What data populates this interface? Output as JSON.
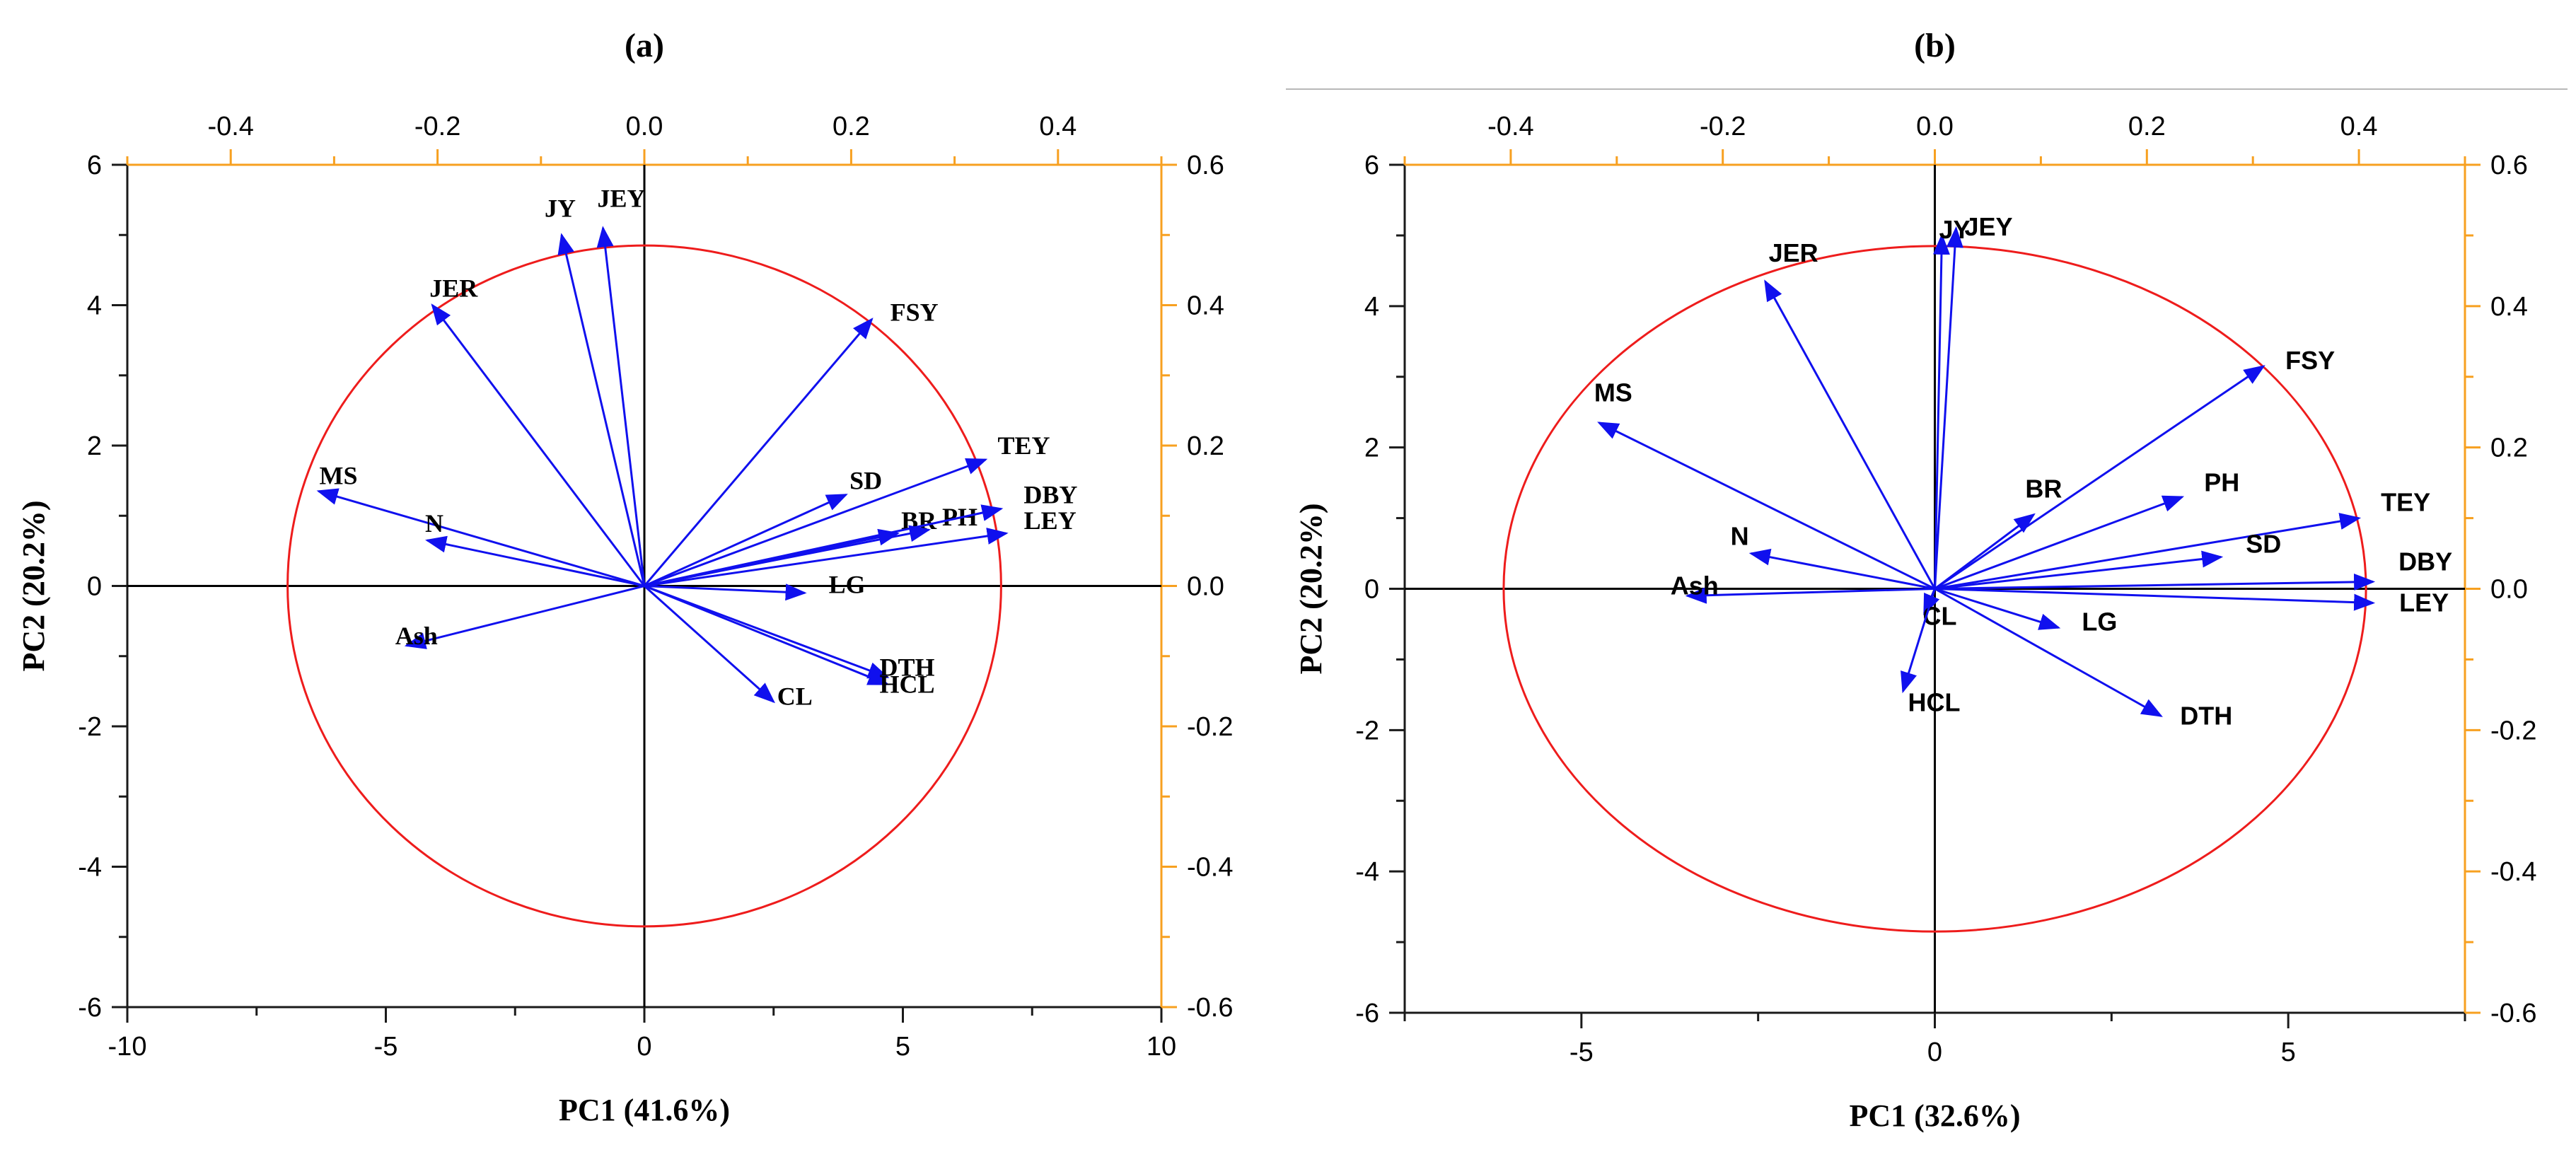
{
  "colors": {
    "vector": "#1010ee",
    "circle": "#ee1c1c",
    "secondary_axis": "#f7a020",
    "primary_axis": "#1a1a1a",
    "separator": "#b8b8b8"
  },
  "chart_data": [
    {
      "type": "scatter",
      "subtype": "pca-biplot",
      "panel_label": "(a)",
      "xlabel": "PC1 (41.6%)",
      "ylabel": "PC2 (20.2%)",
      "xlim": [
        -10,
        10
      ],
      "ylim": [
        -6,
        6
      ],
      "x_ticks": [
        -10,
        -5,
        0,
        5,
        10
      ],
      "y_ticks": [
        -6,
        -4,
        -2,
        0,
        2,
        4,
        6
      ],
      "x_tick_labels": [
        "-10",
        "-5",
        "0",
        "5",
        "10"
      ],
      "y_tick_labels": [
        "-6",
        "-4",
        "-2",
        "0",
        "2",
        "4",
        "6"
      ],
      "top_axis": {
        "lim": [
          -0.5,
          0.5
        ],
        "ticks": [
          -0.4,
          -0.2,
          0.0,
          0.2,
          0.4
        ],
        "tick_labels": [
          "-0.4",
          "-0.2",
          "0.0",
          "0.2",
          "0.4"
        ]
      },
      "right_axis": {
        "lim": [
          -0.6,
          0.6
        ],
        "ticks": [
          -0.6,
          -0.4,
          -0.2,
          0.0,
          0.2,
          0.4,
          0.6
        ],
        "tick_labels": [
          "-0.6",
          "-0.4",
          "-0.2",
          "0.0",
          "0.2",
          "0.4",
          "0.6"
        ]
      },
      "circle": {
        "rx": 6.9,
        "ry": 4.85
      },
      "vectors": [
        {
          "label": "JY",
          "x": -1.6,
          "y": 5.0
        },
        {
          "label": "JEY",
          "x": -0.8,
          "y": 5.1
        },
        {
          "label": "JER",
          "x": -4.1,
          "y": 4.0
        },
        {
          "label": "FSY",
          "x": 4.4,
          "y": 3.8
        },
        {
          "label": "MS",
          "x": -6.3,
          "y": 1.35
        },
        {
          "label": "N",
          "x": -4.2,
          "y": 0.65
        },
        {
          "label": "Ash",
          "x": -4.6,
          "y": -0.85
        },
        {
          "label": "SD",
          "x": 3.9,
          "y": 1.3
        },
        {
          "label": "TEY",
          "x": 6.6,
          "y": 1.8
        },
        {
          "label": "BR",
          "x": 4.9,
          "y": 0.75
        },
        {
          "label": "PH",
          "x": 5.5,
          "y": 0.8
        },
        {
          "label": "DBY",
          "x": 6.9,
          "y": 1.1
        },
        {
          "label": "LEY",
          "x": 7.0,
          "y": 0.75
        },
        {
          "label": "LG",
          "x": 3.1,
          "y": -0.1
        },
        {
          "label": "DTH",
          "x": 4.7,
          "y": -1.3
        },
        {
          "label": "HCL",
          "x": 4.7,
          "y": -1.4
        },
        {
          "label": "CL",
          "x": 2.5,
          "y": -1.65
        }
      ]
    },
    {
      "type": "scatter",
      "subtype": "pca-biplot",
      "panel_label": "(b)",
      "xlabel": "PC1 (32.6%)",
      "ylabel": "PC2 (20.2%)",
      "xlim": [
        -7.5,
        7.5
      ],
      "ylim": [
        -6,
        6
      ],
      "x_ticks": [
        -5,
        0,
        5
      ],
      "y_ticks": [
        -6,
        -4,
        -2,
        0,
        2,
        4,
        6
      ],
      "x_tick_labels": [
        "-5",
        "0",
        "5"
      ],
      "y_tick_labels": [
        "-6",
        "-4",
        "-2",
        "0",
        "2",
        "4",
        "6"
      ],
      "top_axis": {
        "lim": [
          -0.5,
          0.5
        ],
        "ticks": [
          -0.4,
          -0.2,
          0.0,
          0.2,
          0.4
        ],
        "tick_labels": [
          "-0.4",
          "-0.2",
          "0.0",
          "0.2",
          "0.4"
        ]
      },
      "right_axis": {
        "lim": [
          -0.6,
          0.6
        ],
        "ticks": [
          -0.6,
          -0.4,
          -0.2,
          0.0,
          0.2,
          0.4,
          0.6
        ],
        "tick_labels": [
          "-0.6",
          "-0.4",
          "-0.2",
          "0.0",
          "0.2",
          "0.4",
          "0.6"
        ]
      },
      "circle": {
        "rx": 6.1,
        "ry": 4.85
      },
      "vectors": [
        {
          "label": "JY",
          "x": 0.1,
          "y": 5.0
        },
        {
          "label": "JEY",
          "x": 0.3,
          "y": 5.1
        },
        {
          "label": "JER",
          "x": -2.4,
          "y": 4.35
        },
        {
          "label": "FSY",
          "x": 4.65,
          "y": 3.15
        },
        {
          "label": "MS",
          "x": -4.75,
          "y": 2.35
        },
        {
          "label": "N",
          "x": -2.6,
          "y": 0.5
        },
        {
          "label": "Ash",
          "x": -3.5,
          "y": -0.1
        },
        {
          "label": "BR",
          "x": 1.4,
          "y": 1.05
        },
        {
          "label": "PH",
          "x": 3.5,
          "y": 1.3
        },
        {
          "label": "TEY",
          "x": 6.0,
          "y": 1.0
        },
        {
          "label": "SD",
          "x": 4.05,
          "y": 0.45
        },
        {
          "label": "DBY",
          "x": 6.2,
          "y": 0.1
        },
        {
          "label": "LEY",
          "x": 6.2,
          "y": -0.2
        },
        {
          "label": "LG",
          "x": 1.75,
          "y": -0.55
        },
        {
          "label": "CL",
          "x": -0.15,
          "y": -0.35
        },
        {
          "label": "HCL",
          "x": -0.45,
          "y": -1.45
        },
        {
          "label": "DTH",
          "x": 3.2,
          "y": -1.8
        }
      ]
    }
  ]
}
